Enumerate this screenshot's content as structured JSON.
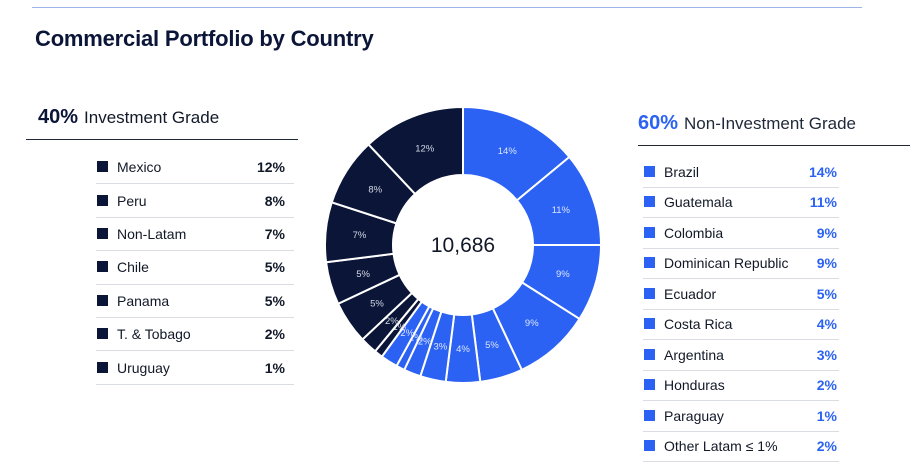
{
  "title": "Commercial Portfolio by Country",
  "investment_grade": {
    "pct": "40%",
    "label": "Investment Grade"
  },
  "non_investment_grade": {
    "pct": "60%",
    "label": "Non-Investment Grade"
  },
  "colors": {
    "investment": "#0b1538",
    "non_investment": "#2b62f4",
    "accent_text": "#2b62f4"
  },
  "chart_data": {
    "type": "pie",
    "variant": "donut",
    "title": "Commercial Portfolio by Country",
    "center_label": "10,686",
    "slices": [
      {
        "name": "Brazil",
        "value": 14,
        "label": "14%",
        "group": "non_investment"
      },
      {
        "name": "Guatemala",
        "value": 11,
        "label": "11%",
        "group": "non_investment"
      },
      {
        "name": "Colombia",
        "value": 9,
        "label": "9%",
        "group": "non_investment"
      },
      {
        "name": "Dominican Republic",
        "value": 9,
        "label": "9%",
        "group": "non_investment"
      },
      {
        "name": "Ecuador",
        "value": 5,
        "label": "5%",
        "group": "non_investment"
      },
      {
        "name": "Costa Rica",
        "value": 4,
        "label": "4%",
        "group": "non_investment"
      },
      {
        "name": "Argentina",
        "value": 3,
        "label": "3%",
        "group": "non_investment"
      },
      {
        "name": "Honduras",
        "value": 2,
        "label": "2%",
        "group": "non_investment"
      },
      {
        "name": "Paraguay",
        "value": 1,
        "label": "1%",
        "group": "non_investment"
      },
      {
        "name": "Other Latam ≤ 1%",
        "value": 2,
        "label": "2%",
        "group": "non_investment"
      },
      {
        "name": "Uruguay",
        "value": 1,
        "label": "1%",
        "group": "investment"
      },
      {
        "name": "T. & Tobago",
        "value": 2,
        "label": "2%",
        "group": "investment"
      },
      {
        "name": "Panama",
        "value": 5,
        "label": "5%",
        "group": "investment"
      },
      {
        "name": "Chile",
        "value": 5,
        "label": "5%",
        "group": "investment"
      },
      {
        "name": "Non-Latam",
        "value": 7,
        "label": "7%",
        "group": "investment"
      },
      {
        "name": "Peru",
        "value": 8,
        "label": "8%",
        "group": "investment"
      },
      {
        "name": "Mexico",
        "value": 12,
        "label": "12%",
        "group": "investment"
      }
    ],
    "legend_investment": [
      {
        "name": "Mexico",
        "value": "12%"
      },
      {
        "name": "Peru",
        "value": "8%"
      },
      {
        "name": "Non-Latam",
        "value": "7%"
      },
      {
        "name": "Chile",
        "value": "5%"
      },
      {
        "name": "Panama",
        "value": "5%"
      },
      {
        "name": "T. & Tobago",
        "value": "2%"
      },
      {
        "name": "Uruguay",
        "value": "1%"
      }
    ],
    "legend_non_investment": [
      {
        "name": "Brazil",
        "value": "14%"
      },
      {
        "name": "Guatemala",
        "value": "11%"
      },
      {
        "name": "Colombia",
        "value": "9%"
      },
      {
        "name": "Dominican Republic",
        "value": "9%"
      },
      {
        "name": "Ecuador",
        "value": "5%"
      },
      {
        "name": "Costa Rica",
        "value": "4%"
      },
      {
        "name": "Argentina",
        "value": "3%"
      },
      {
        "name": "Honduras",
        "value": "2%"
      },
      {
        "name": "Paraguay",
        "value": "1%"
      },
      {
        "name": "Other Latam ≤ 1%",
        "value": "2%"
      }
    ]
  }
}
